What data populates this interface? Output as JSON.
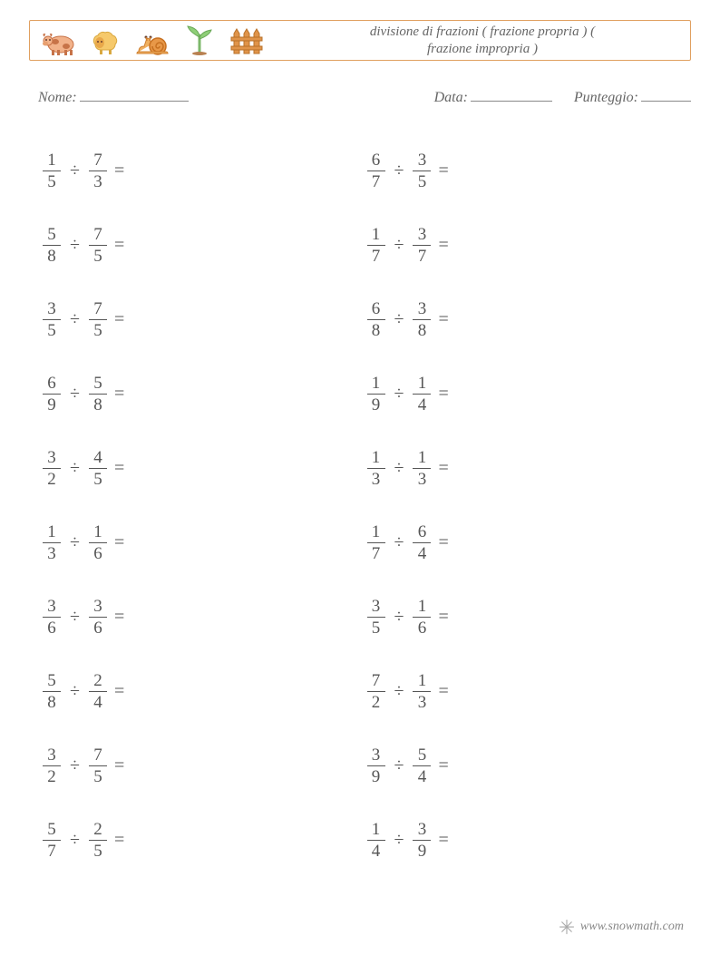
{
  "title_line1": "divisione di frazioni ( frazione propria ) (",
  "title_line2": "frazione impropria )",
  "labels": {
    "name": "Nome:",
    "date": "Data:",
    "score": "Punteggio:"
  },
  "operator": "÷",
  "equals": "=",
  "columns": [
    [
      {
        "a": {
          "n": "1",
          "d": "5"
        },
        "b": {
          "n": "7",
          "d": "3"
        }
      },
      {
        "a": {
          "n": "5",
          "d": "8"
        },
        "b": {
          "n": "7",
          "d": "5"
        }
      },
      {
        "a": {
          "n": "3",
          "d": "5"
        },
        "b": {
          "n": "7",
          "d": "5"
        }
      },
      {
        "a": {
          "n": "6",
          "d": "9"
        },
        "b": {
          "n": "5",
          "d": "8"
        }
      },
      {
        "a": {
          "n": "3",
          "d": "2"
        },
        "b": {
          "n": "4",
          "d": "5"
        }
      },
      {
        "a": {
          "n": "1",
          "d": "3"
        },
        "b": {
          "n": "1",
          "d": "6"
        }
      },
      {
        "a": {
          "n": "3",
          "d": "6"
        },
        "b": {
          "n": "3",
          "d": "6"
        }
      },
      {
        "a": {
          "n": "5",
          "d": "8"
        },
        "b": {
          "n": "2",
          "d": "4"
        }
      },
      {
        "a": {
          "n": "3",
          "d": "2"
        },
        "b": {
          "n": "7",
          "d": "5"
        }
      },
      {
        "a": {
          "n": "5",
          "d": "7"
        },
        "b": {
          "n": "2",
          "d": "5"
        }
      }
    ],
    [
      {
        "a": {
          "n": "6",
          "d": "7"
        },
        "b": {
          "n": "3",
          "d": "5"
        }
      },
      {
        "a": {
          "n": "1",
          "d": "7"
        },
        "b": {
          "n": "3",
          "d": "7"
        }
      },
      {
        "a": {
          "n": "6",
          "d": "8"
        },
        "b": {
          "n": "3",
          "d": "8"
        }
      },
      {
        "a": {
          "n": "1",
          "d": "9"
        },
        "b": {
          "n": "1",
          "d": "4"
        }
      },
      {
        "a": {
          "n": "1",
          "d": "3"
        },
        "b": {
          "n": "1",
          "d": "3"
        }
      },
      {
        "a": {
          "n": "1",
          "d": "7"
        },
        "b": {
          "n": "6",
          "d": "4"
        }
      },
      {
        "a": {
          "n": "3",
          "d": "5"
        },
        "b": {
          "n": "1",
          "d": "6"
        }
      },
      {
        "a": {
          "n": "7",
          "d": "2"
        },
        "b": {
          "n": "1",
          "d": "3"
        }
      },
      {
        "a": {
          "n": "3",
          "d": "9"
        },
        "b": {
          "n": "5",
          "d": "4"
        }
      },
      {
        "a": {
          "n": "1",
          "d": "4"
        },
        "b": {
          "n": "3",
          "d": "9"
        }
      }
    ]
  ],
  "footer": "www.snowmath.com",
  "colors": {
    "border": "#e0a060",
    "text": "#555555",
    "muted": "#888888",
    "cow_body": "#f2b28a",
    "cow_spot": "#c77348",
    "sheep_body": "#f6c96b",
    "sheep_face": "#e9a84a",
    "snail_body": "#f0b060",
    "snail_shell": "#e89848",
    "sprout_stem": "#7db86b",
    "sprout_leaf": "#8fcf78",
    "fence": "#e0944a"
  }
}
